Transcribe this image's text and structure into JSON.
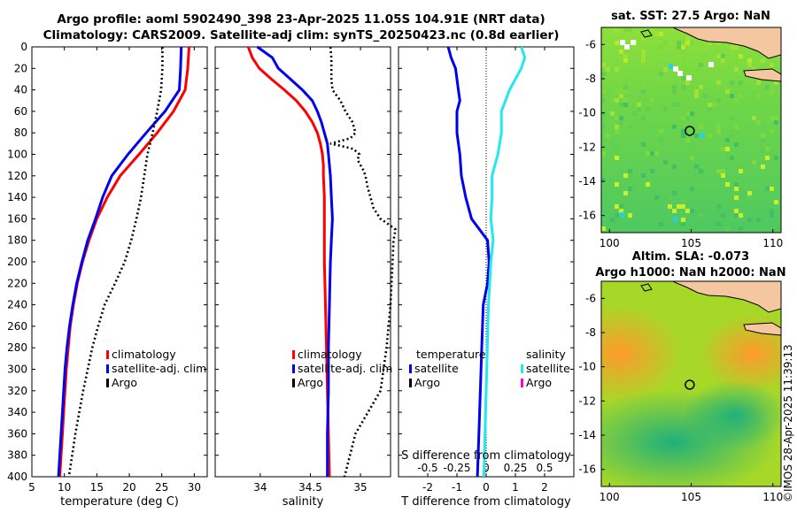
{
  "header": {
    "title_line1": "Argo profile: aoml 5902490_398 23-Apr-2025 11.05S 104.91E (NRT data)",
    "title_line2": "Climatology: CARS2009. Satellite-adj clim: synTS_20250423.nc (0.8d earlier)"
  },
  "watermark": "©IMOS 28-Apr-2025 11:39:13",
  "colors": {
    "climatology": "#ff0000",
    "satellite": "#0000ee",
    "argo": "#000000",
    "sal_satellite": "#22e8f0",
    "sal_argo": "#ff00cc",
    "land": "#f5c7a0"
  },
  "chart_data": [
    {
      "type": "line",
      "id": "temperature",
      "xlabel": "temperature (deg C)",
      "ylabel": "",
      "xlim": [
        5,
        32
      ],
      "ylim": [
        400,
        0
      ],
      "xticks": [
        5,
        10,
        15,
        20,
        25,
        30
      ],
      "yticks": [
        0,
        20,
        40,
        60,
        80,
        100,
        120,
        140,
        160,
        180,
        200,
        220,
        240,
        260,
        280,
        300,
        320,
        340,
        360,
        380,
        400
      ],
      "legend": [
        "climatology",
        "satellite-adj. clim",
        "Argo"
      ],
      "series": [
        {
          "name": "climatology",
          "depth": [
            0,
            20,
            40,
            60,
            80,
            100,
            120,
            140,
            160,
            180,
            200,
            220,
            240,
            260,
            280,
            300,
            320,
            340,
            360,
            380,
            400
          ],
          "values": [
            29.2,
            29.0,
            28.6,
            26.8,
            24.3,
            21.5,
            18.6,
            16.6,
            15.0,
            13.8,
            12.8,
            12.0,
            11.4,
            10.9,
            10.6,
            10.3,
            10.1,
            9.9,
            9.7,
            9.5,
            9.3
          ]
        },
        {
          "name": "satellite-adj. clim",
          "depth": [
            0,
            20,
            40,
            60,
            80,
            100,
            120,
            140,
            160,
            180,
            200,
            220,
            240,
            260,
            280,
            300,
            320,
            340,
            360,
            380,
            400
          ],
          "values": [
            28.0,
            27.9,
            27.7,
            25.5,
            22.6,
            19.8,
            17.3,
            15.9,
            14.8,
            13.6,
            12.7,
            11.9,
            11.3,
            10.8,
            10.4,
            10.1,
            9.9,
            9.7,
            9.5,
            9.3,
            9.1
          ]
        },
        {
          "name": "Argo",
          "depth": [
            0,
            20,
            40,
            60,
            80,
            100,
            120,
            140,
            160,
            180,
            200,
            220,
            240,
            260,
            280,
            300,
            320,
            340,
            360,
            380,
            400
          ],
          "values": [
            25.1,
            25.1,
            24.9,
            24.3,
            23.6,
            22.8,
            22.3,
            21.8,
            21.1,
            20.3,
            19.3,
            17.8,
            16.2,
            15.2,
            14.3,
            13.6,
            12.9,
            12.3,
            11.7,
            11.2,
            10.7
          ]
        }
      ]
    },
    {
      "type": "line",
      "id": "salinity",
      "xlabel": "salinity",
      "xlim": [
        33.55,
        35.3
      ],
      "ylim": [
        400,
        0
      ],
      "xticks": [
        34,
        34.5,
        35
      ],
      "legend": [
        "climatology",
        "satellite-adj. clim",
        "Argo"
      ],
      "series": [
        {
          "name": "climatology",
          "depth": [
            0,
            10,
            20,
            30,
            40,
            50,
            60,
            70,
            80,
            90,
            100,
            110,
            120,
            140,
            160,
            180,
            200,
            240,
            280,
            320,
            360,
            400
          ],
          "values": [
            33.88,
            33.92,
            33.99,
            34.11,
            34.24,
            34.36,
            34.45,
            34.52,
            34.57,
            34.6,
            34.62,
            34.63,
            34.63,
            34.64,
            34.64,
            34.64,
            34.64,
            34.65,
            34.66,
            34.67,
            34.68,
            34.69
          ]
        },
        {
          "name": "satellite-adj. clim",
          "depth": [
            0,
            10,
            20,
            30,
            40,
            50,
            60,
            70,
            80,
            90,
            100,
            110,
            120,
            140,
            160,
            180,
            200,
            240,
            280,
            320,
            360,
            400
          ],
          "values": [
            33.97,
            34.12,
            34.18,
            34.3,
            34.42,
            34.52,
            34.57,
            34.61,
            34.64,
            34.67,
            34.68,
            34.69,
            34.7,
            34.71,
            34.72,
            34.71,
            34.7,
            34.69,
            34.68,
            34.68,
            34.67,
            34.67
          ]
        },
        {
          "name": "Argo",
          "depth": [
            0,
            10,
            20,
            30,
            40,
            50,
            60,
            70,
            80,
            85,
            90,
            92,
            95,
            100,
            105,
            110,
            115,
            120,
            130,
            140,
            150,
            160,
            165,
            170,
            180,
            200,
            240,
            280,
            320,
            360,
            400
          ],
          "values": [
            34.7,
            34.71,
            34.71,
            34.71,
            34.72,
            34.8,
            34.85,
            34.92,
            34.95,
            34.9,
            34.7,
            34.8,
            34.93,
            34.99,
            34.97,
            35.0,
            35.03,
            35.05,
            35.07,
            35.1,
            35.13,
            35.2,
            35.28,
            35.35,
            35.33,
            35.32,
            35.3,
            35.26,
            35.2,
            34.95,
            34.84
          ]
        }
      ]
    },
    {
      "type": "line",
      "id": "difference",
      "xlabel": "T difference from climatology",
      "xlim": [
        -3,
        3
      ],
      "ylim": [
        400,
        0
      ],
      "xticks": [
        -2,
        -1,
        0,
        1,
        2
      ],
      "s_axis_label": "S difference from climatology",
      "s_xticks": [
        -0.5,
        -0.25,
        0,
        0.25,
        0.5
      ],
      "legend_temperature": {
        "header": "temperature",
        "items": [
          "satellite",
          "Argo"
        ]
      },
      "legend_salinity": {
        "header": "salinity",
        "items": [
          "satellite",
          "Argo"
        ]
      },
      "series": [
        {
          "name": "temperature satellite",
          "depth": [
            0,
            10,
            20,
            40,
            50,
            60,
            80,
            100,
            120,
            140,
            160,
            180,
            200,
            220,
            240,
            280,
            320,
            360,
            400
          ],
          "values": [
            -1.3,
            -1.2,
            -1.05,
            -0.95,
            -0.9,
            -1.0,
            -1.0,
            -0.9,
            -0.85,
            -0.7,
            -0.5,
            0.05,
            0.1,
            0.05,
            -0.1,
            -0.15,
            -0.2,
            -0.25,
            -0.3
          ]
        },
        {
          "name": "salinity satellite",
          "depth": [
            0,
            10,
            20,
            40,
            60,
            80,
            100,
            120,
            140,
            160,
            180,
            200,
            220,
            240,
            280,
            320,
            360,
            400
          ],
          "values": [
            0.3,
            0.33,
            0.3,
            0.2,
            0.13,
            0.13,
            0.1,
            0.05,
            0.05,
            0.04,
            0.06,
            0.04,
            0.03,
            0.02,
            0.01,
            0.0,
            -0.01,
            -0.02
          ]
        }
      ]
    },
    {
      "type": "heatmap",
      "id": "sst-map",
      "title": "sat. SST: 27.5 Argo: NaN",
      "xlim": [
        99.5,
        110.5
      ],
      "ylim": [
        -17,
        -5
      ],
      "xticks": [
        100,
        105,
        110
      ],
      "yticks": [
        -6,
        -8,
        -10,
        -12,
        -14,
        -16
      ],
      "float_location": [
        104.91,
        -11.05
      ]
    },
    {
      "type": "heatmap",
      "id": "sla-map",
      "title_line1": "Altim. SLA: -0.073",
      "title_line2": "Argo h1000: NaN h2000: NaN",
      "xlim": [
        99.5,
        110.5
      ],
      "ylim": [
        -17,
        -5
      ],
      "xticks": [
        100,
        105,
        110
      ],
      "yticks": [
        -6,
        -8,
        -10,
        -12,
        -14,
        -16
      ],
      "float_location": [
        104.91,
        -11.05
      ]
    }
  ]
}
